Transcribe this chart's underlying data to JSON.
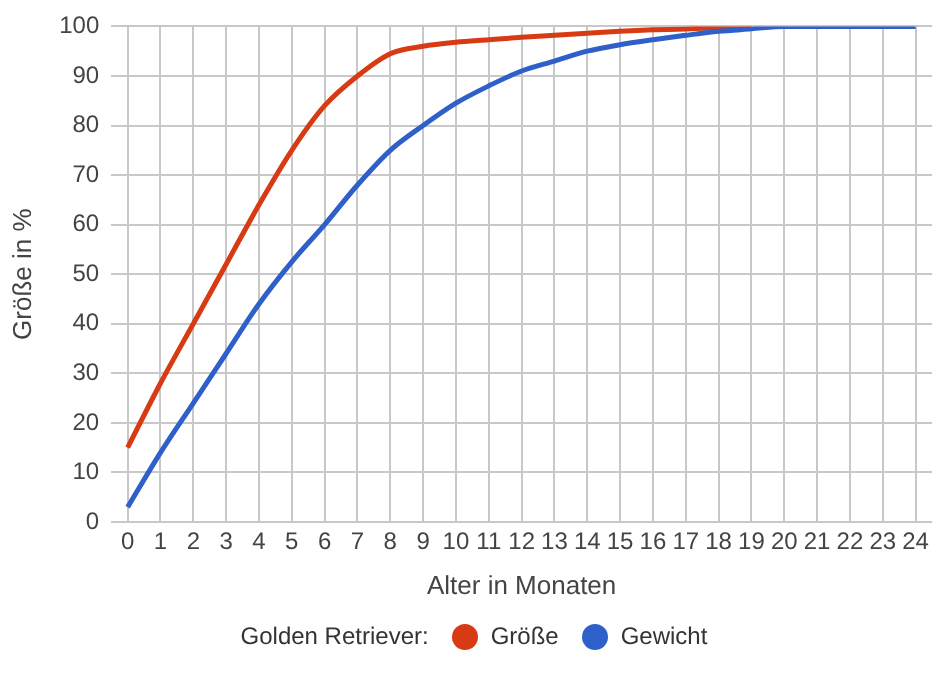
{
  "chart_data": {
    "type": "line",
    "xlabel": "Alter in Monaten",
    "ylabel": "Größe in %",
    "legend_title": "Golden Retriever:",
    "x": [
      0,
      1,
      2,
      3,
      4,
      5,
      6,
      7,
      8,
      9,
      10,
      11,
      12,
      13,
      14,
      15,
      16,
      17,
      18,
      19,
      20,
      21,
      22,
      23,
      24
    ],
    "series": [
      {
        "name": "Größe",
        "color": "#d83b14",
        "values": [
          15,
          28,
          40,
          52,
          64,
          75,
          84,
          90,
          94.5,
          96,
          96.8,
          97.3,
          97.8,
          98.2,
          98.6,
          99,
          99.3,
          99.5,
          99.8,
          100,
          null,
          null,
          null,
          null,
          null
        ]
      },
      {
        "name": "Gewicht",
        "color": "#2f5fc8",
        "values": [
          3,
          14,
          24,
          34,
          44,
          52.5,
          60,
          68,
          75,
          80,
          84.5,
          88,
          91,
          93,
          95,
          96.3,
          97.3,
          98.2,
          99,
          99.5,
          100,
          100,
          100,
          100,
          100
        ]
      }
    ],
    "xlim": [
      -0.5,
      24.5
    ],
    "xticks": [
      0,
      1,
      2,
      3,
      4,
      5,
      6,
      7,
      8,
      9,
      10,
      11,
      12,
      13,
      14,
      15,
      16,
      17,
      18,
      19,
      20,
      21,
      22,
      23,
      24
    ],
    "ylim": [
      0,
      100
    ],
    "yticks": [
      0,
      10,
      20,
      30,
      40,
      50,
      60,
      70,
      80,
      90,
      100
    ],
    "grid": true,
    "legend": "bottom",
    "marker": "none",
    "line_style": "solid"
  }
}
